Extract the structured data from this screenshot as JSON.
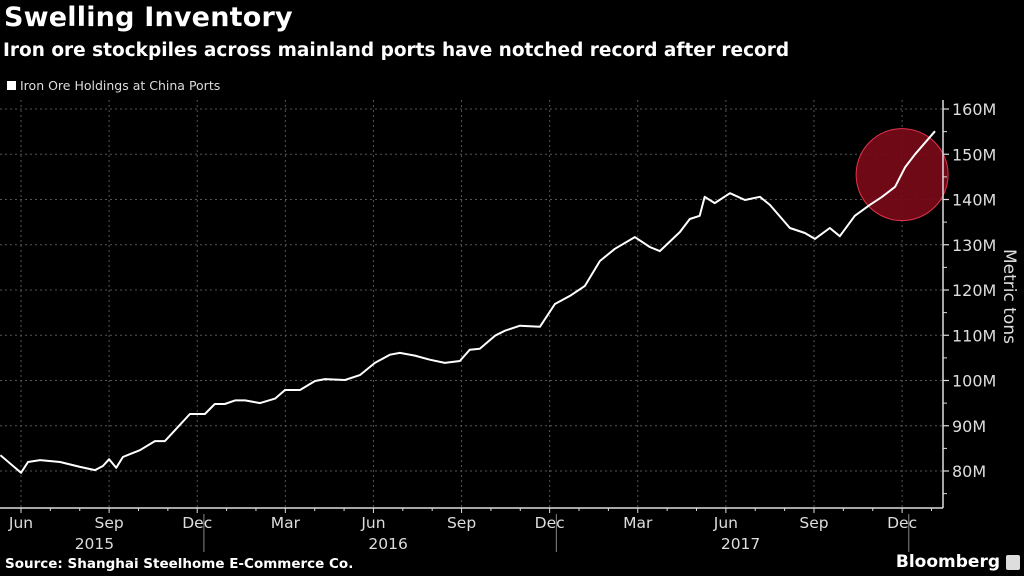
{
  "chart_data": {
    "type": "line",
    "title": "Swelling Inventory",
    "subtitle": "Iron ore stockpiles across mainland ports have notched record after record",
    "ylabel": "Metric tons",
    "xlabel": "",
    "ylim": [
      73,
      162
    ],
    "y_ticks": [
      80,
      90,
      100,
      110,
      120,
      130,
      140,
      150,
      160
    ],
    "y_tick_labels": [
      "80M",
      "90M",
      "100M",
      "110M",
      "120M",
      "130M",
      "140M",
      "150M",
      "160M"
    ],
    "x_unit": "months since Jun 2015",
    "x_ticks": [
      {
        "pos": 0,
        "label": "Jun"
      },
      {
        "pos": 3,
        "label": "Sep"
      },
      {
        "pos": 6,
        "label": "Dec"
      },
      {
        "pos": 9,
        "label": "Mar"
      },
      {
        "pos": 12,
        "label": "Jun"
      },
      {
        "pos": 15,
        "label": "Sep"
      },
      {
        "pos": 18,
        "label": "Dec"
      },
      {
        "pos": 21,
        "label": "Mar"
      },
      {
        "pos": 24,
        "label": "Jun"
      },
      {
        "pos": 27,
        "label": "Sep"
      },
      {
        "pos": 30,
        "label": "Dec"
      }
    ],
    "year_labels": [
      {
        "pos": 2.5,
        "label": "2015"
      },
      {
        "pos": 12.5,
        "label": "2016"
      },
      {
        "pos": 24.5,
        "label": "2017"
      }
    ],
    "year_separators": [
      6.5,
      18.5,
      30.5
    ],
    "grid": true,
    "legend": {
      "position": "top-left",
      "entries": [
        "Iron Ore Holdings at China Ports"
      ]
    },
    "highlight": {
      "center_x": 30,
      "center_y": 145.5,
      "label": ""
    },
    "series": [
      {
        "name": "Iron Ore Holdings at China Ports",
        "color": "#ffffff",
        "x": [
          -0.7,
          0,
          0.24,
          0.65,
          1.33,
          2.01,
          2.52,
          2.79,
          3.0,
          3.24,
          3.47,
          4.05,
          4.56,
          4.9,
          5.24,
          5.75,
          6.26,
          6.6,
          6.94,
          7.29,
          7.63,
          8.14,
          8.65,
          8.99,
          9.5,
          10.01,
          10.35,
          11.03,
          11.54,
          12.05,
          12.56,
          12.9,
          13.41,
          13.92,
          14.43,
          14.94,
          15.28,
          15.62,
          16.14,
          16.48,
          16.99,
          17.67,
          18.18,
          18.69,
          19.2,
          19.71,
          20.22,
          20.9,
          21.41,
          21.75,
          22.43,
          22.77,
          23.11,
          23.28,
          23.62,
          24.14,
          24.65,
          25.16,
          25.5,
          26.18,
          26.69,
          27.03,
          27.54,
          27.88,
          28.39,
          28.9,
          29.32,
          29.76,
          30.1,
          30.44,
          31.12
        ],
        "values": [
          83.5,
          79.6,
          82.0,
          82.4,
          82.0,
          80.9,
          80.2,
          81.1,
          82.6,
          80.7,
          83.1,
          84.6,
          86.6,
          86.6,
          89.0,
          92.6,
          92.6,
          94.8,
          94.8,
          95.6,
          95.6,
          95.0,
          96.0,
          97.9,
          97.9,
          99.9,
          100.3,
          100.1,
          101.2,
          103.9,
          105.7,
          106.1,
          105.5,
          104.6,
          103.9,
          104.3,
          106.8,
          107.0,
          109.9,
          111.0,
          112.1,
          111.9,
          116.9,
          118.7,
          120.9,
          126.4,
          129.1,
          131.7,
          129.5,
          128.6,
          132.8,
          135.7,
          136.4,
          140.6,
          139.2,
          141.4,
          139.9,
          140.6,
          138.8,
          133.7,
          132.6,
          131.3,
          133.7,
          131.9,
          136.4,
          138.8,
          140.6,
          142.8,
          147.1,
          150.0,
          155.1
        ]
      }
    ]
  },
  "source": "Source: Shanghai Steelhome E-Commerce Co.",
  "brand": "Bloomberg",
  "colors": {
    "background": "#000000",
    "highlight_fill": "#7a0a18",
    "highlight_stroke": "#e0344c",
    "grid": "#555555"
  }
}
